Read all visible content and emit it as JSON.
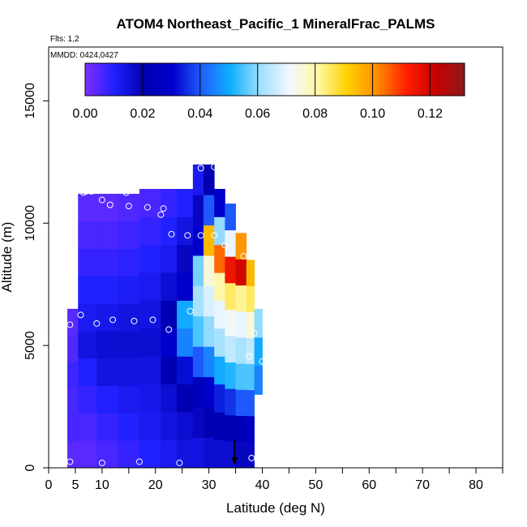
{
  "chart_data": {
    "type": "heatmap",
    "title": "ATOM4 Northeast_Pacific_1 MineralFrac_PALMS",
    "flights_note": "Flts: 1,2",
    "date_note": "MMDD: 0424,0427",
    "xlabel": "Latitude (deg N)",
    "ylabel": "Altitude (m)",
    "xlim": [
      0,
      85
    ],
    "ylim": [
      0,
      17200
    ],
    "x_ticks": [
      0,
      5,
      10,
      20,
      30,
      40,
      50,
      60,
      70,
      80
    ],
    "x_minor_ticks": [
      15,
      25,
      35,
      45,
      55,
      65,
      75,
      85
    ],
    "y_ticks": [
      0,
      5000,
      10000,
      15000
    ],
    "colorbar": {
      "range": [
        0,
        0.132
      ],
      "ticks": [
        "0.00",
        "0.02",
        "0.04",
        "0.06",
        "0.08",
        "0.10",
        "0.12"
      ],
      "tick_values": [
        0,
        0.02,
        0.04,
        0.06,
        0.08,
        0.1,
        0.12
      ],
      "colors": [
        "#7f2fff",
        "#2020ff",
        "#0000b0",
        "#0000cc",
        "#1f5fff",
        "#10b0ff",
        "#9fdfff",
        "#f2f8ff",
        "#fff7a0",
        "#ffd000",
        "#ff8c00",
        "#ff2000",
        "#c80000",
        "#8c1a1a"
      ]
    },
    "grid": false,
    "legend": "none",
    "field_columns": [
      {
        "lat": [
          3.5,
          5.5
        ],
        "alt": [
          0,
          6500
        ],
        "v": [
          0.004,
          0.006,
          0.006,
          0.007,
          0.005,
          0.004
        ]
      },
      {
        "lat": [
          5.5,
          9
        ],
        "alt": [
          0,
          11200
        ],
        "v": [
          0.004,
          0.006,
          0.008,
          0.01,
          0.014,
          0.012,
          0.01,
          0.008,
          0.006,
          0.004
        ]
      },
      {
        "lat": [
          9,
          13
        ],
        "alt": [
          0,
          11200
        ],
        "v": [
          0.006,
          0.008,
          0.01,
          0.014,
          0.016,
          0.013,
          0.01,
          0.008,
          0.006,
          0.004
        ]
      },
      {
        "lat": [
          13,
          17
        ],
        "alt": [
          0,
          11200
        ],
        "v": [
          0.008,
          0.01,
          0.012,
          0.014,
          0.016,
          0.014,
          0.011,
          0.009,
          0.007,
          0.005
        ]
      },
      {
        "lat": [
          17,
          21
        ],
        "alt": [
          0,
          11400
        ],
        "v": [
          0.01,
          0.012,
          0.013,
          0.014,
          0.016,
          0.014,
          0.012,
          0.01,
          0.008,
          0.006
        ]
      },
      {
        "lat": [
          21,
          24
        ],
        "alt": [
          0,
          11400
        ],
        "v": [
          0.012,
          0.014,
          0.016,
          0.022,
          0.03,
          0.022,
          0.016,
          0.012,
          0.01,
          0.008
        ]
      },
      {
        "lat": [
          24,
          27
        ],
        "alt": [
          0,
          11400
        ],
        "v": [
          0.014,
          0.016,
          0.02,
          0.032,
          0.045,
          0.05,
          0.03,
          0.018,
          0.014,
          0.01
        ]
      },
      {
        "lat": [
          27,
          29
        ],
        "alt": [
          0,
          12400
        ],
        "v": [
          0.014,
          0.018,
          0.024,
          0.04,
          0.055,
          0.062,
          0.058,
          0.03,
          0.018,
          0.012
        ]
      },
      {
        "lat": [
          29,
          31
        ],
        "alt": [
          0,
          12400
        ],
        "v": [
          0.016,
          0.02,
          0.03,
          0.045,
          0.06,
          0.068,
          0.075,
          0.095,
          0.04,
          0.02
        ]
      },
      {
        "lat": [
          31,
          33
        ],
        "alt": [
          0,
          11400
        ],
        "v": [
          0.016,
          0.022,
          0.034,
          0.05,
          0.062,
          0.07,
          0.08,
          0.105,
          0.06,
          0.03
        ]
      },
      {
        "lat": [
          33,
          35
        ],
        "alt": [
          0,
          10800
        ],
        "v": [
          0.016,
          0.022,
          0.036,
          0.052,
          0.065,
          0.072,
          0.085,
          0.115,
          0.07,
          0.04
        ]
      },
      {
        "lat": [
          35,
          37
        ],
        "alt": [
          0,
          9600
        ],
        "v": [
          0.018,
          0.024,
          0.04,
          0.055,
          0.062,
          0.07,
          0.082,
          0.12,
          0.1
        ]
      },
      {
        "lat": [
          37,
          38.5
        ],
        "alt": [
          0,
          8500
        ],
        "v": [
          0.018,
          0.026,
          0.04,
          0.055,
          0.065,
          0.075,
          0.085,
          0.095
        ]
      },
      {
        "lat": [
          38.5,
          40
        ],
        "alt": [
          3000,
          6500
        ],
        "v": [
          0.045,
          0.05,
          0.06
        ]
      }
    ],
    "sample_points": [
      [
        4,
        250
      ],
      [
        4,
        5850
      ],
      [
        6.5,
        11250
      ],
      [
        7,
        11300
      ],
      [
        8,
        11300
      ],
      [
        6,
        6250
      ],
      [
        10,
        200
      ],
      [
        10,
        10950
      ],
      [
        9,
        5900
      ],
      [
        11.5,
        10750
      ],
      [
        12,
        6050
      ],
      [
        14.5,
        11250
      ],
      [
        15,
        10700
      ],
      [
        16,
        6000
      ],
      [
        17,
        250
      ],
      [
        18.5,
        10650
      ],
      [
        19.5,
        6050
      ],
      [
        21,
        10350
      ],
      [
        21.5,
        10600
      ],
      [
        22.5,
        5650
      ],
      [
        23,
        9550
      ],
      [
        24.5,
        200
      ],
      [
        26,
        9500
      ],
      [
        26.5,
        6400
      ],
      [
        28.5,
        12250
      ],
      [
        28.5,
        9500
      ],
      [
        31,
        12300
      ],
      [
        31,
        9500
      ],
      [
        33,
        9100
      ],
      [
        36.5,
        8650
      ],
      [
        37.5,
        4550
      ],
      [
        38,
        400
      ],
      [
        38.5,
        5500
      ],
      [
        40,
        4350
      ]
    ],
    "marker": {
      "lat": 34.8,
      "alt": 750,
      "direction": "down"
    }
  }
}
